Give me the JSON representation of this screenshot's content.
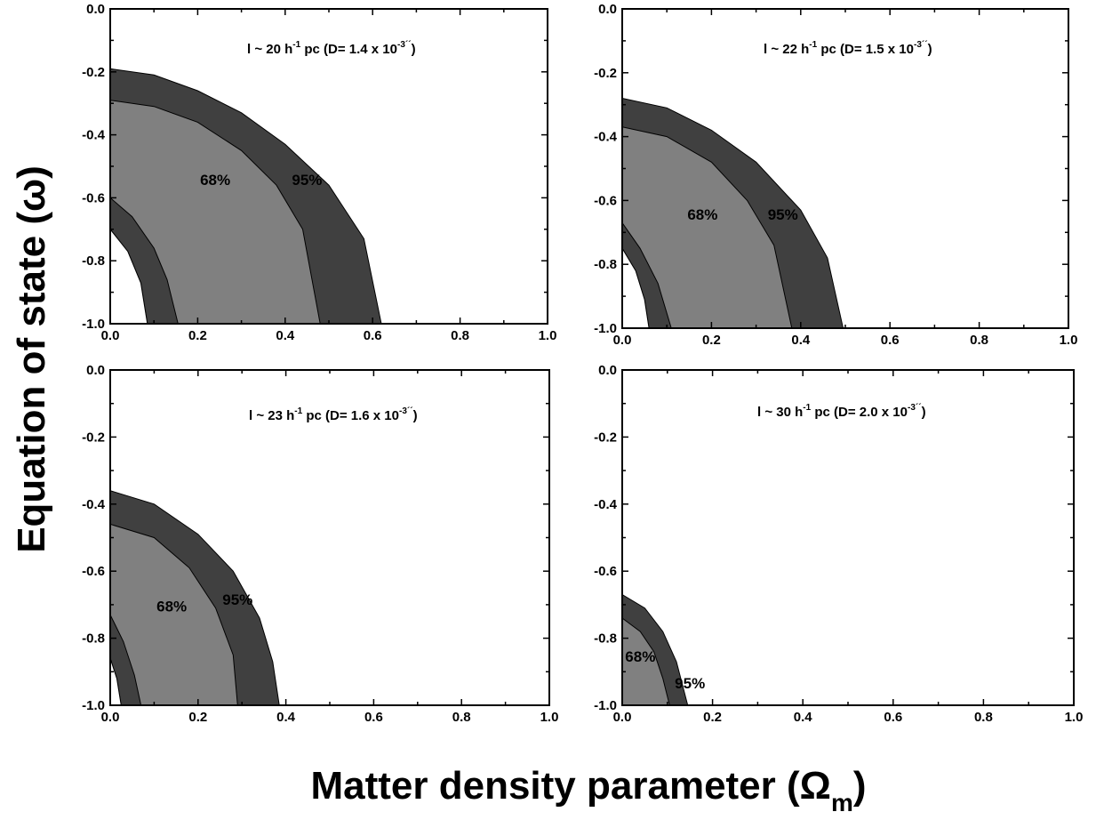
{
  "figure": {
    "xlabel_main": "Matter density parameter (Ω",
    "xlabel_sub": "m",
    "xlabel_close": ")",
    "ylabel": "Equation of state (ω)",
    "colors": {
      "sigma1": "#808080",
      "sigma2": "#404040",
      "frame": "#000000"
    }
  },
  "chart_data": [
    {
      "type": "area",
      "panel": "top-left",
      "annotation": {
        "pre": "l ~ 20 h",
        "sup1": "-1",
        "mid": " pc   (D= 1.4 x 10",
        "sup2": "-3´´",
        "post": ")"
      },
      "xlim": [
        0,
        1
      ],
      "ylim": [
        -1,
        0
      ],
      "xticks": [
        "0.0",
        "0.2",
        "0.4",
        "0.6",
        "0.8",
        "1.0"
      ],
      "yticks": [
        "0.0",
        "-0.2",
        "-0.4",
        "-0.6",
        "-0.8",
        "-1.0"
      ],
      "contour_labels": [
        {
          "text": "68%",
          "x": 0.24,
          "y": -0.56
        },
        {
          "text": "95%",
          "x": 0.45,
          "y": -0.56
        }
      ],
      "outer95": [
        [
          0,
          -0.19
        ],
        [
          0.1,
          -0.21
        ],
        [
          0.2,
          -0.26
        ],
        [
          0.3,
          -0.33
        ],
        [
          0.4,
          -0.43
        ],
        [
          0.5,
          -0.56
        ],
        [
          0.58,
          -0.73
        ],
        [
          0.62,
          -1.0
        ]
      ],
      "outer68": [
        [
          0,
          -0.29
        ],
        [
          0.1,
          -0.31
        ],
        [
          0.2,
          -0.36
        ],
        [
          0.3,
          -0.45
        ],
        [
          0.38,
          -0.56
        ],
        [
          0.44,
          -0.7
        ],
        [
          0.48,
          -1.0
        ]
      ],
      "inner68": [
        [
          0,
          -0.6
        ],
        [
          0.05,
          -0.66
        ],
        [
          0.1,
          -0.76
        ],
        [
          0.13,
          -0.86
        ],
        [
          0.155,
          -1.0
        ]
      ],
      "inner95": [
        [
          0,
          -0.7
        ],
        [
          0.04,
          -0.77
        ],
        [
          0.07,
          -0.87
        ],
        [
          0.085,
          -1.0
        ]
      ]
    },
    {
      "type": "area",
      "panel": "top-right",
      "annotation": {
        "pre": "l ~ 22 h",
        "sup1": "-1",
        "mid": " pc   (D= 1.5 x 10",
        "sup2": "-3´´",
        "post": ")"
      },
      "xlim": [
        0,
        1
      ],
      "ylim": [
        -1,
        0
      ],
      "xticks": [
        "0.0",
        "0.2",
        "0.4",
        "0.6",
        "0.8",
        "1.0"
      ],
      "yticks": [
        "0.0",
        "-0.2",
        "-0.4",
        "-0.6",
        "-0.8",
        "-1.0"
      ],
      "contour_labels": [
        {
          "text": "68%",
          "x": 0.18,
          "y": -0.66
        },
        {
          "text": "95%",
          "x": 0.36,
          "y": -0.66
        }
      ],
      "outer95": [
        [
          0,
          -0.28
        ],
        [
          0.1,
          -0.31
        ],
        [
          0.2,
          -0.38
        ],
        [
          0.3,
          -0.48
        ],
        [
          0.4,
          -0.63
        ],
        [
          0.46,
          -0.78
        ],
        [
          0.495,
          -1.0
        ]
      ],
      "outer68": [
        [
          0,
          -0.37
        ],
        [
          0.1,
          -0.4
        ],
        [
          0.2,
          -0.48
        ],
        [
          0.28,
          -0.6
        ],
        [
          0.34,
          -0.74
        ],
        [
          0.38,
          -1.0
        ]
      ],
      "inner68": [
        [
          0,
          -0.67
        ],
        [
          0.04,
          -0.75
        ],
        [
          0.08,
          -0.86
        ],
        [
          0.11,
          -1.0
        ]
      ],
      "inner95": [
        [
          0,
          -0.75
        ],
        [
          0.03,
          -0.82
        ],
        [
          0.05,
          -0.91
        ],
        [
          0.06,
          -1.0
        ]
      ]
    },
    {
      "type": "area",
      "panel": "bottom-left",
      "annotation": {
        "pre": "l ~ 23 h",
        "sup1": "-1",
        "mid": " pc   (D= 1.6 x 10",
        "sup2": "-3´´",
        "post": ")"
      },
      "xlim": [
        0,
        1
      ],
      "ylim": [
        -1,
        0
      ],
      "xticks": [
        "0.0",
        "0.2",
        "0.4",
        "0.6",
        "0.8",
        "1.0"
      ],
      "yticks": [
        "0.0",
        "-0.2",
        "-0.4",
        "-0.6",
        "-0.8",
        "-1.0"
      ],
      "contour_labels": [
        {
          "text": "68%",
          "x": 0.14,
          "y": -0.72
        },
        {
          "text": "95%",
          "x": 0.29,
          "y": -0.7
        }
      ],
      "outer95": [
        [
          0,
          -0.36
        ],
        [
          0.1,
          -0.4
        ],
        [
          0.2,
          -0.49
        ],
        [
          0.28,
          -0.6
        ],
        [
          0.34,
          -0.74
        ],
        [
          0.37,
          -0.87
        ],
        [
          0.385,
          -1.0
        ]
      ],
      "outer68": [
        [
          0,
          -0.46
        ],
        [
          0.1,
          -0.5
        ],
        [
          0.18,
          -0.59
        ],
        [
          0.24,
          -0.71
        ],
        [
          0.28,
          -0.85
        ],
        [
          0.29,
          -1.0
        ]
      ],
      "inner68": [
        [
          0,
          -0.73
        ],
        [
          0.03,
          -0.81
        ],
        [
          0.055,
          -0.91
        ],
        [
          0.07,
          -1.0
        ]
      ],
      "inner95": [
        [
          0,
          -0.86
        ],
        [
          0.015,
          -0.92
        ],
        [
          0.025,
          -1.0
        ]
      ]
    },
    {
      "type": "area",
      "panel": "bottom-right",
      "annotation": {
        "pre": "l ~ 30 h",
        "sup1": "-1",
        "mid": " pc   (D= 2.0 x 10",
        "sup2": "-3´´",
        "post": ")"
      },
      "xlim": [
        0,
        1
      ],
      "ylim": [
        -1,
        0
      ],
      "xticks": [
        "0.0",
        "0.2",
        "0.4",
        "0.6",
        "0.8",
        "1.0"
      ],
      "yticks": [
        "0.0",
        "-0.2",
        "-0.4",
        "-0.6",
        "-0.8",
        "-1.0"
      ],
      "contour_labels": [
        {
          "text": "68%",
          "x": 0.04,
          "y": -0.87
        },
        {
          "text": "95%",
          "x": 0.15,
          "y": -0.95
        }
      ],
      "outer95": [
        [
          0,
          -0.67
        ],
        [
          0.05,
          -0.71
        ],
        [
          0.09,
          -0.78
        ],
        [
          0.12,
          -0.87
        ],
        [
          0.145,
          -1.0
        ]
      ],
      "outer68": [
        [
          0,
          -0.74
        ],
        [
          0.04,
          -0.78
        ],
        [
          0.07,
          -0.84
        ],
        [
          0.09,
          -0.92
        ],
        [
          0.105,
          -1.0
        ]
      ],
      "inner68": [],
      "inner95": []
    }
  ]
}
